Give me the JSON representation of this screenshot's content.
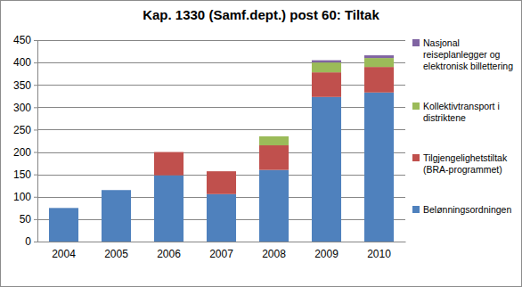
{
  "chart_data": {
    "type": "bar",
    "title": "Kap. 1330 (Samf.dept.) post 60: Tiltak",
    "categories": [
      "2004",
      "2005",
      "2006",
      "2007",
      "2008",
      "2009",
      "2010"
    ],
    "stacked": true,
    "grid": true,
    "legend": "right",
    "ylim": [
      0,
      450
    ],
    "yticks": [
      0,
      50,
      100,
      150,
      200,
      250,
      300,
      350,
      400,
      450
    ],
    "series": [
      {
        "name": "Belønningsordningen",
        "color": "#4f81bd",
        "values": [
          75,
          115,
          148,
          106,
          160,
          323,
          333
        ]
      },
      {
        "name": "Tilgjengelighetstiltak (BRA-programmet)",
        "color": "#c0504d",
        "values": [
          0,
          0,
          52,
          51,
          55,
          55,
          57
        ]
      },
      {
        "name": "Kollektivtransport i distriktene",
        "color": "#9bbb59",
        "values": [
          0,
          0,
          0,
          0,
          20,
          22,
          20
        ]
      },
      {
        "name": "Nasjonal reiseplanlegger og elektronisk billettering",
        "color": "#8064a2",
        "values": [
          0,
          0,
          0,
          0,
          0,
          5,
          6
        ]
      }
    ]
  }
}
